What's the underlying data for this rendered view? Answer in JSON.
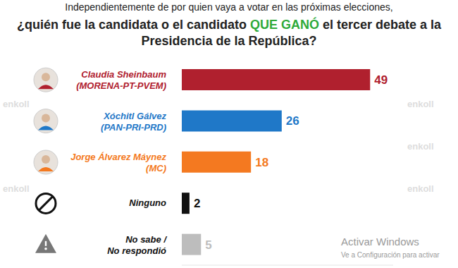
{
  "chart_data": {
    "type": "bar",
    "orientation": "horizontal",
    "subtitle": "Independientemente de por quien vaya a votar en las próximas elecciones,",
    "title": "¿quién fue la candidata o el candidato QUE GANÓ el tercer debate a la Presidencia de la República?",
    "categories": [
      "Claudia Sheinbaum (MORENA-PT-PVEM)",
      "Xóchitl Gálvez (PAN-PRI-PRD)",
      "Jorge Álvarez Máynez (MC)",
      "Ninguno",
      "No sabe / No respondió"
    ],
    "values": [
      49,
      26,
      18,
      2,
      5
    ],
    "colors": [
      "#b0202e",
      "#1f78c8",
      "#f47920",
      "#111111",
      "#bdbdbd"
    ],
    "xlim": [
      0,
      55
    ],
    "data_labels": true,
    "tick_labels": false,
    "grid": false,
    "annotations": [
      "enkoll",
      "Activar Windows",
      "Ve a Configuración para activar"
    ]
  }
}
